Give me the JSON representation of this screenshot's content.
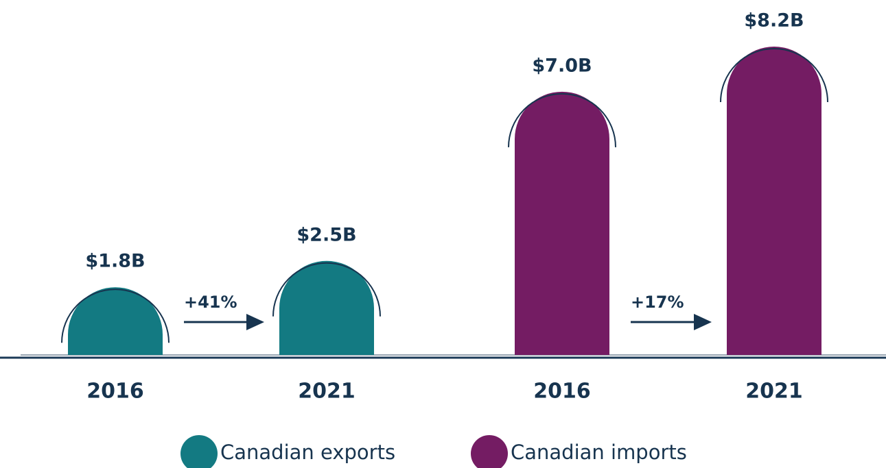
{
  "chart_data": {
    "type": "bar",
    "categories": [
      "2016",
      "2021",
      "2016",
      "2021"
    ],
    "series": [
      {
        "name": "Canadian exports",
        "color": "#137a82",
        "values": [
          1.8,
          2.5,
          null,
          null
        ],
        "value_labels": [
          "$1.8B",
          "$2.5B",
          null,
          null
        ]
      },
      {
        "name": "Canadian imports",
        "color": "#741c63",
        "values": [
          null,
          null,
          7.0,
          8.2
        ],
        "value_labels": [
          null,
          null,
          "$7.0B",
          "$8.2B"
        ]
      }
    ],
    "annotations": [
      "+41%",
      "+17%"
    ]
  }
}
